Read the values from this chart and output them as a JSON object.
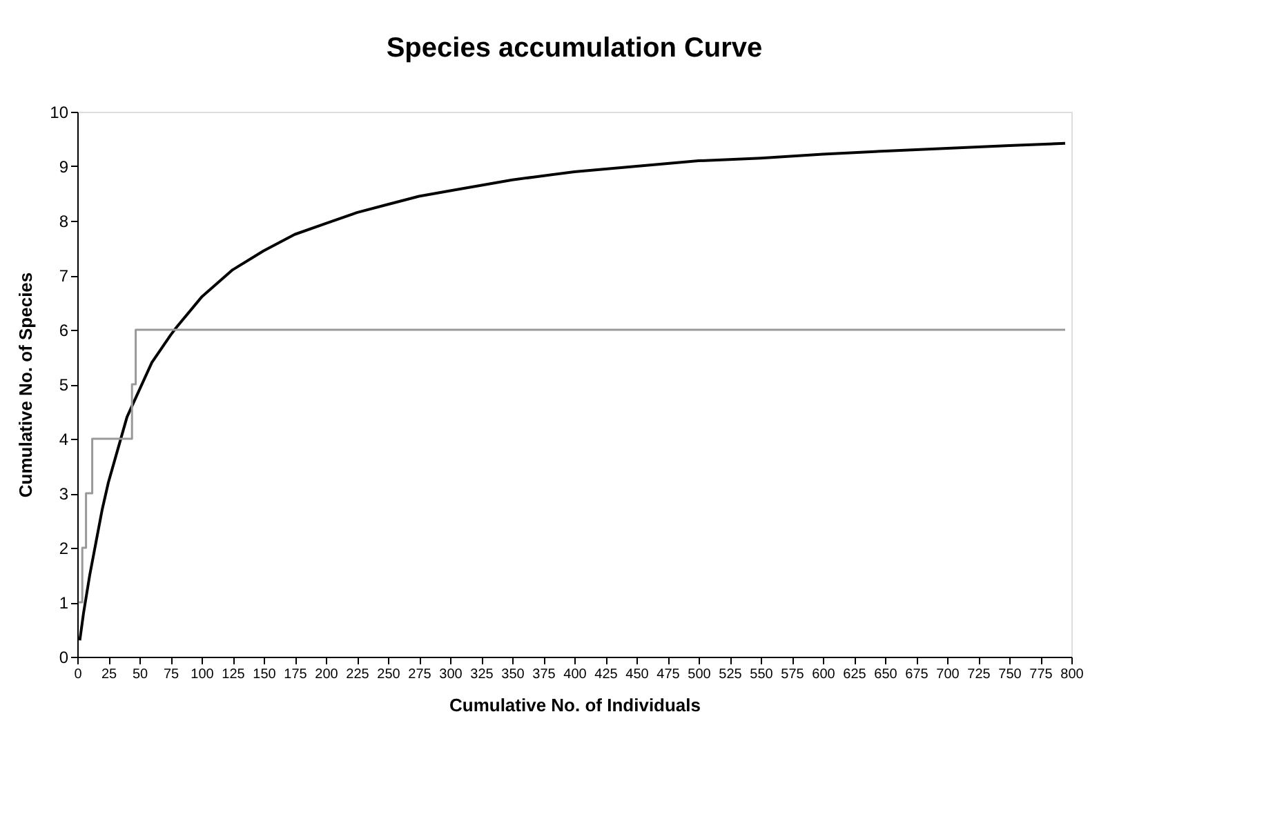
{
  "chart_data": {
    "type": "line",
    "title": "Species accumulation Curve",
    "xlabel": "Cumulative No. of Individuals",
    "ylabel": "Cumulative No. of Species",
    "xlim": [
      0,
      800
    ],
    "xticks": [
      0,
      25,
      50,
      75,
      100,
      125,
      150,
      175,
      200,
      225,
      250,
      275,
      300,
      325,
      350,
      375,
      400,
      425,
      450,
      475,
      500,
      525,
      550,
      575,
      600,
      625,
      650,
      675,
      700,
      725,
      750,
      775,
      800
    ],
    "ylim": [
      0,
      10
    ],
    "yticks": [
      0,
      1,
      2,
      3,
      4,
      5,
      6,
      7,
      8,
      9,
      10
    ],
    "grid": false,
    "legend": false,
    "series": [
      {
        "color": "#000000",
        "x": [
          2,
          5,
          10,
          15,
          20,
          25,
          30,
          40,
          50,
          60,
          75,
          80,
          100,
          125,
          150,
          175,
          200,
          225,
          250,
          275,
          300,
          350,
          400,
          450,
          500,
          550,
          600,
          650,
          700,
          750,
          795
        ],
        "values": [
          0.3,
          0.8,
          1.5,
          2.1,
          2.7,
          3.2,
          3.6,
          4.4,
          4.9,
          5.4,
          5.9,
          6.05,
          6.6,
          7.1,
          7.45,
          7.75,
          7.95,
          8.15,
          8.3,
          8.45,
          8.55,
          8.75,
          8.9,
          9.0,
          9.1,
          9.15,
          9.22,
          9.28,
          9.33,
          9.38,
          9.42
        ]
      },
      {
        "type": "step",
        "color": "#999999",
        "x": [
          1,
          4,
          7,
          12,
          44,
          47,
          795
        ],
        "values": [
          1,
          2,
          3,
          4,
          5,
          6,
          6
        ]
      }
    ]
  }
}
